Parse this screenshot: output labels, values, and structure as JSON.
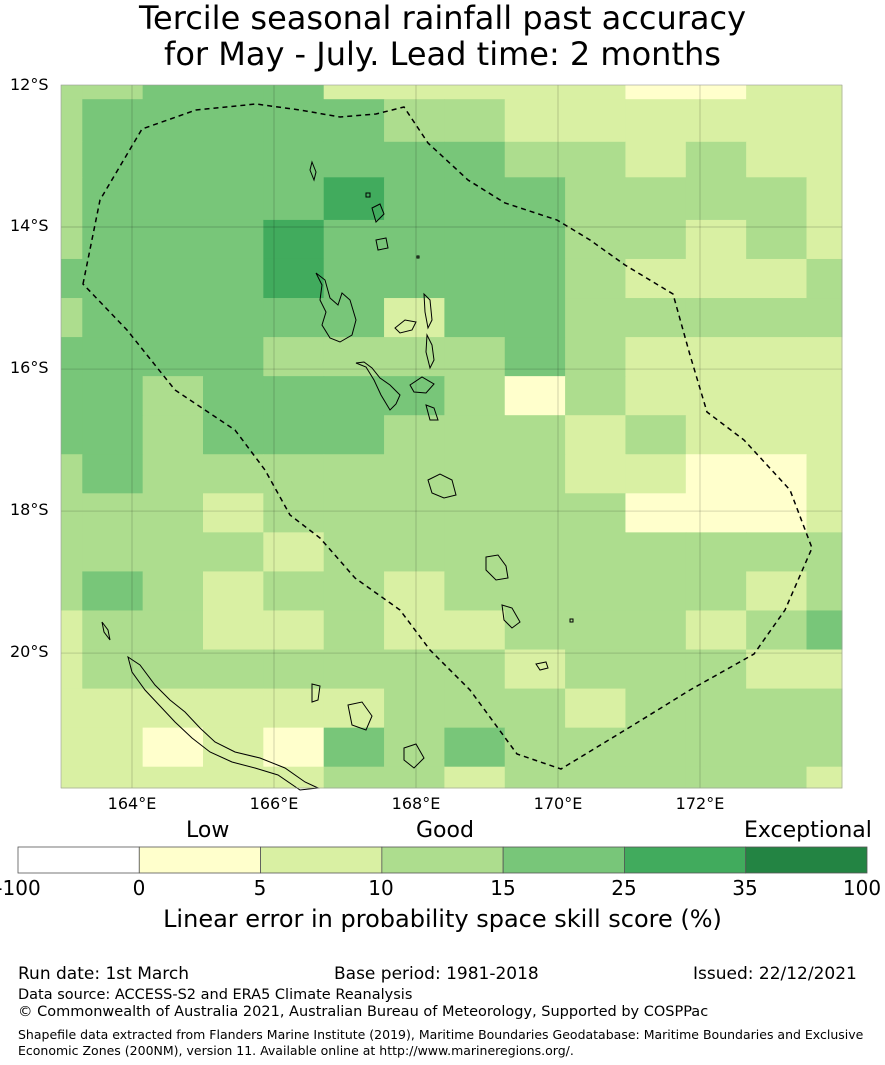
{
  "title": {
    "line1": "Tercile seasonal rainfall past accuracy",
    "line2": "for May - July. Lead time: 2 months"
  },
  "map": {
    "lat_labels": [
      "12°S",
      "14°S",
      "16°S",
      "18°S",
      "20°S"
    ],
    "lon_labels": [
      "164°E",
      "166°E",
      "168°E",
      "170°E",
      "172°E"
    ],
    "lon_min": 163.0,
    "lon_max": 174.0,
    "lat_top": -12.0,
    "lat_bottom": -21.9,
    "cell_lon_edges": [
      163.0,
      163.3,
      164.15,
      165.0,
      165.85,
      166.7,
      167.55,
      168.4,
      169.25,
      170.1,
      170.95,
      171.8,
      172.65,
      173.5,
      174.0
    ],
    "cell_lat_edges": [
      -12.0,
      -12.2,
      -12.8,
      -13.3,
      -13.9,
      -14.45,
      -15.0,
      -15.55,
      -16.1,
      -16.65,
      -17.2,
      -17.75,
      -18.3,
      -18.85,
      -19.4,
      -19.95,
      -20.5,
      -21.05,
      -21.6,
      -21.9
    ],
    "skill_grid_category_index": [
      [
        3,
        3,
        4,
        4,
        4,
        2,
        2,
        2,
        2,
        2,
        1,
        1,
        2,
        2
      ],
      [
        3,
        4,
        4,
        4,
        4,
        4,
        3,
        3,
        2,
        2,
        2,
        2,
        2,
        2
      ],
      [
        3,
        4,
        4,
        4,
        4,
        4,
        4,
        4,
        3,
        3,
        2,
        3,
        2,
        2
      ],
      [
        3,
        4,
        4,
        4,
        4,
        5,
        4,
        4,
        4,
        3,
        3,
        3,
        3,
        2
      ],
      [
        3,
        4,
        4,
        4,
        5,
        4,
        4,
        4,
        4,
        3,
        3,
        2,
        3,
        2
      ],
      [
        4,
        4,
        4,
        4,
        5,
        4,
        4,
        4,
        4,
        3,
        2,
        2,
        2,
        3
      ],
      [
        3,
        4,
        4,
        4,
        4,
        4,
        2,
        4,
        4,
        3,
        3,
        3,
        3,
        3
      ],
      [
        4,
        4,
        4,
        4,
        3,
        3,
        3,
        3,
        4,
        3,
        2,
        2,
        2,
        2
      ],
      [
        4,
        4,
        3,
        4,
        4,
        4,
        4,
        3,
        1,
        3,
        2,
        2,
        2,
        2
      ],
      [
        4,
        4,
        3,
        4,
        4,
        4,
        3,
        3,
        3,
        2,
        3,
        2,
        2,
        2
      ],
      [
        3,
        4,
        3,
        3,
        3,
        3,
        3,
        3,
        3,
        2,
        2,
        1,
        1,
        2
      ],
      [
        3,
        3,
        3,
        2,
        3,
        3,
        3,
        3,
        3,
        3,
        1,
        1,
        1,
        2
      ],
      [
        3,
        3,
        3,
        3,
        2,
        3,
        3,
        3,
        3,
        3,
        3,
        3,
        3,
        3
      ],
      [
        3,
        4,
        3,
        2,
        3,
        3,
        2,
        3,
        3,
        3,
        3,
        3,
        2,
        3
      ],
      [
        2,
        3,
        3,
        2,
        2,
        3,
        2,
        2,
        3,
        3,
        3,
        2,
        3,
        4
      ],
      [
        2,
        3,
        3,
        3,
        3,
        3,
        3,
        3,
        2,
        3,
        3,
        3,
        2,
        2
      ],
      [
        2,
        2,
        2,
        2,
        2,
        2,
        3,
        3,
        3,
        2,
        3,
        3,
        3,
        3
      ],
      [
        2,
        2,
        1,
        2,
        1,
        4,
        3,
        4,
        3,
        3,
        3,
        3,
        3,
        3
      ],
      [
        2,
        2,
        2,
        2,
        2,
        3,
        3,
        2,
        3,
        3,
        3,
        3,
        3,
        2
      ]
    ]
  },
  "colorbar": {
    "categories": [
      "Low",
      "Good",
      "Exceptional"
    ],
    "ticks": [
      "-100",
      "0",
      "5",
      "10",
      "15",
      "25",
      "35",
      "100"
    ],
    "colors": [
      "#ffffff",
      "#ffffcc",
      "#d9f0a3",
      "#addd8e",
      "#78c679",
      "#41ab5d",
      "#238443"
    ],
    "label": "Linear error in probability space skill score (%)"
  },
  "footer": {
    "run_date": "Run date: 1st March",
    "base_period": "Base period: 1981-2018",
    "issued": "Issued: 22/12/2021",
    "data_source": "Data source: ACCESS-S2 and ERA5 Climate Reanalysis",
    "copyright": "© Commonwealth of Australia 2021, Australian Bureau of Meteorology, Supported by COSPPac",
    "shapefile_line1": "Shapefile data extracted from Flanders Marine Institute (2019), Maritime Boundaries Geodatabase: Maritime Boundaries and Exclusive",
    "shapefile_line2": "Economic Zones (200NM), version 11. Available online at http://www.marineregions.org/."
  }
}
